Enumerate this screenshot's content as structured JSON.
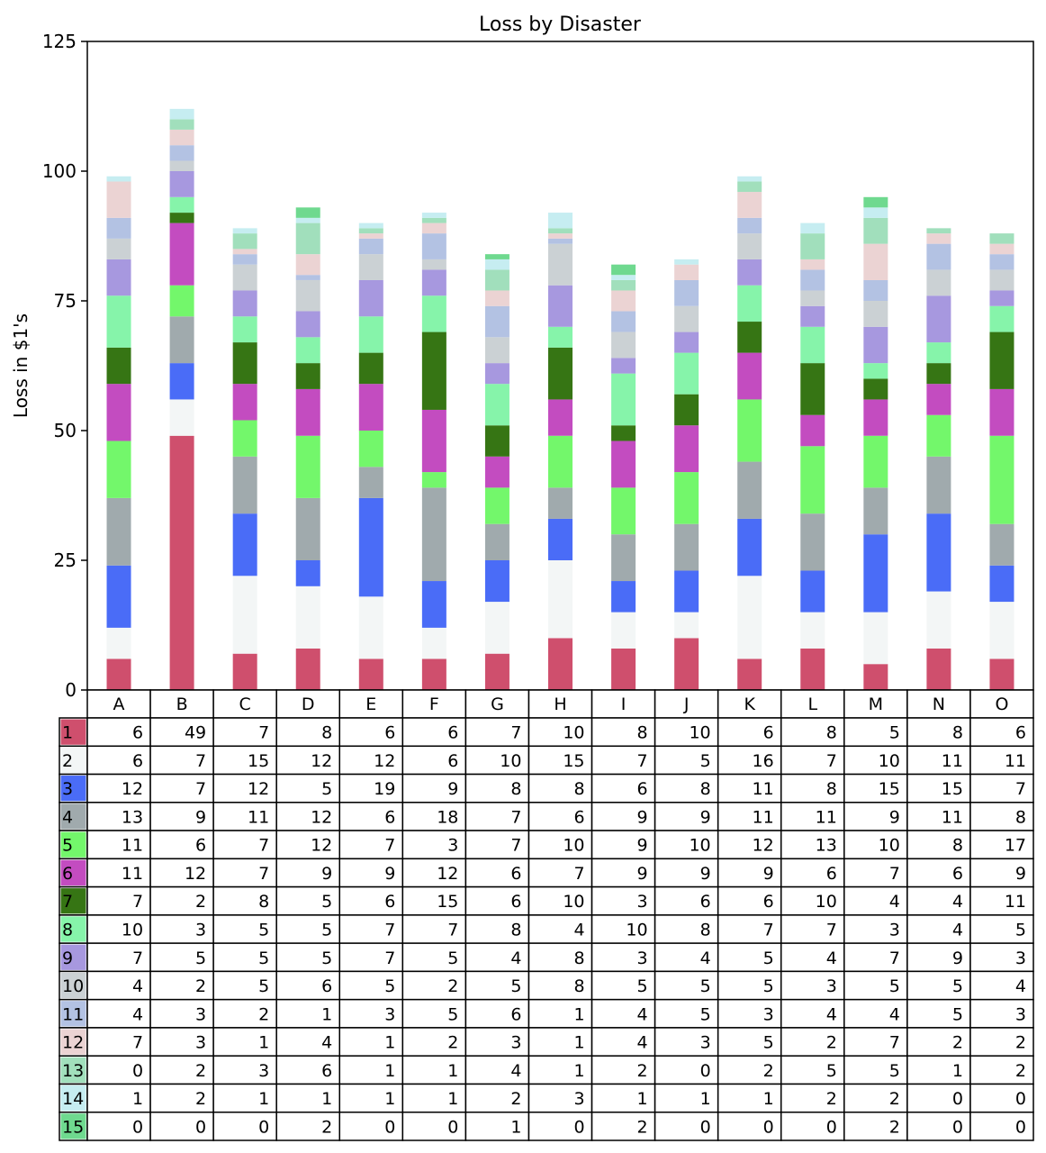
{
  "chart_data": {
    "type": "bar",
    "stacked": true,
    "title": "Loss by Disaster",
    "ylabel": "Loss in $1's",
    "xlabel": "",
    "ylim": [
      0,
      125
    ],
    "yticks": [
      0,
      25,
      50,
      75,
      100,
      125
    ],
    "grid": false,
    "categories": [
      "A",
      "B",
      "C",
      "D",
      "E",
      "F",
      "G",
      "H",
      "I",
      "J",
      "K",
      "L",
      "M",
      "N",
      "O"
    ],
    "series": [
      {
        "name": "1",
        "color": "#cf4f6d",
        "values": [
          6,
          49,
          7,
          8,
          6,
          6,
          7,
          10,
          8,
          10,
          6,
          8,
          5,
          8,
          6
        ]
      },
      {
        "name": "2",
        "color": "#f3f6f6",
        "values": [
          6,
          7,
          15,
          12,
          12,
          6,
          10,
          15,
          7,
          5,
          16,
          7,
          10,
          11,
          11
        ]
      },
      {
        "name": "3",
        "color": "#4a6cf7",
        "values": [
          12,
          7,
          12,
          5,
          19,
          9,
          8,
          8,
          6,
          8,
          11,
          8,
          15,
          15,
          7
        ]
      },
      {
        "name": "4",
        "color": "#a0aaad",
        "values": [
          13,
          9,
          11,
          12,
          6,
          18,
          7,
          6,
          9,
          9,
          11,
          11,
          9,
          11,
          8
        ]
      },
      {
        "name": "5",
        "color": "#73f76b",
        "values": [
          11,
          6,
          7,
          12,
          7,
          3,
          7,
          10,
          9,
          10,
          12,
          13,
          10,
          8,
          17
        ]
      },
      {
        "name": "6",
        "color": "#c34cc0",
        "values": [
          11,
          12,
          7,
          9,
          9,
          12,
          6,
          7,
          9,
          9,
          9,
          6,
          7,
          6,
          9
        ]
      },
      {
        "name": "7",
        "color": "#367514",
        "values": [
          7,
          2,
          8,
          5,
          6,
          15,
          6,
          10,
          3,
          6,
          6,
          10,
          4,
          4,
          11
        ]
      },
      {
        "name": "8",
        "color": "#86f4aa",
        "values": [
          10,
          3,
          5,
          5,
          7,
          7,
          8,
          4,
          10,
          8,
          7,
          7,
          3,
          4,
          5
        ]
      },
      {
        "name": "9",
        "color": "#a798df",
        "values": [
          7,
          5,
          5,
          5,
          7,
          5,
          4,
          8,
          3,
          4,
          5,
          4,
          7,
          9,
          3
        ]
      },
      {
        "name": "10",
        "color": "#cbd1d4",
        "values": [
          4,
          2,
          5,
          6,
          5,
          2,
          5,
          8,
          5,
          5,
          5,
          3,
          5,
          5,
          4
        ]
      },
      {
        "name": "11",
        "color": "#b3c2e3",
        "values": [
          4,
          3,
          2,
          1,
          3,
          5,
          6,
          1,
          4,
          5,
          3,
          4,
          4,
          5,
          3
        ]
      },
      {
        "name": "12",
        "color": "#ebd3d3",
        "values": [
          7,
          3,
          1,
          4,
          1,
          2,
          3,
          1,
          4,
          3,
          5,
          2,
          7,
          2,
          2
        ]
      },
      {
        "name": "13",
        "color": "#a1dfbc",
        "values": [
          0,
          2,
          3,
          6,
          1,
          1,
          4,
          1,
          2,
          0,
          2,
          5,
          5,
          1,
          2
        ]
      },
      {
        "name": "14",
        "color": "#c6edf1",
        "values": [
          1,
          2,
          1,
          1,
          1,
          1,
          2,
          3,
          1,
          1,
          1,
          2,
          2,
          0,
          0
        ]
      },
      {
        "name": "15",
        "color": "#6fd98f",
        "values": [
          0,
          0,
          0,
          2,
          0,
          0,
          1,
          0,
          2,
          0,
          0,
          0,
          2,
          0,
          0
        ]
      }
    ]
  }
}
